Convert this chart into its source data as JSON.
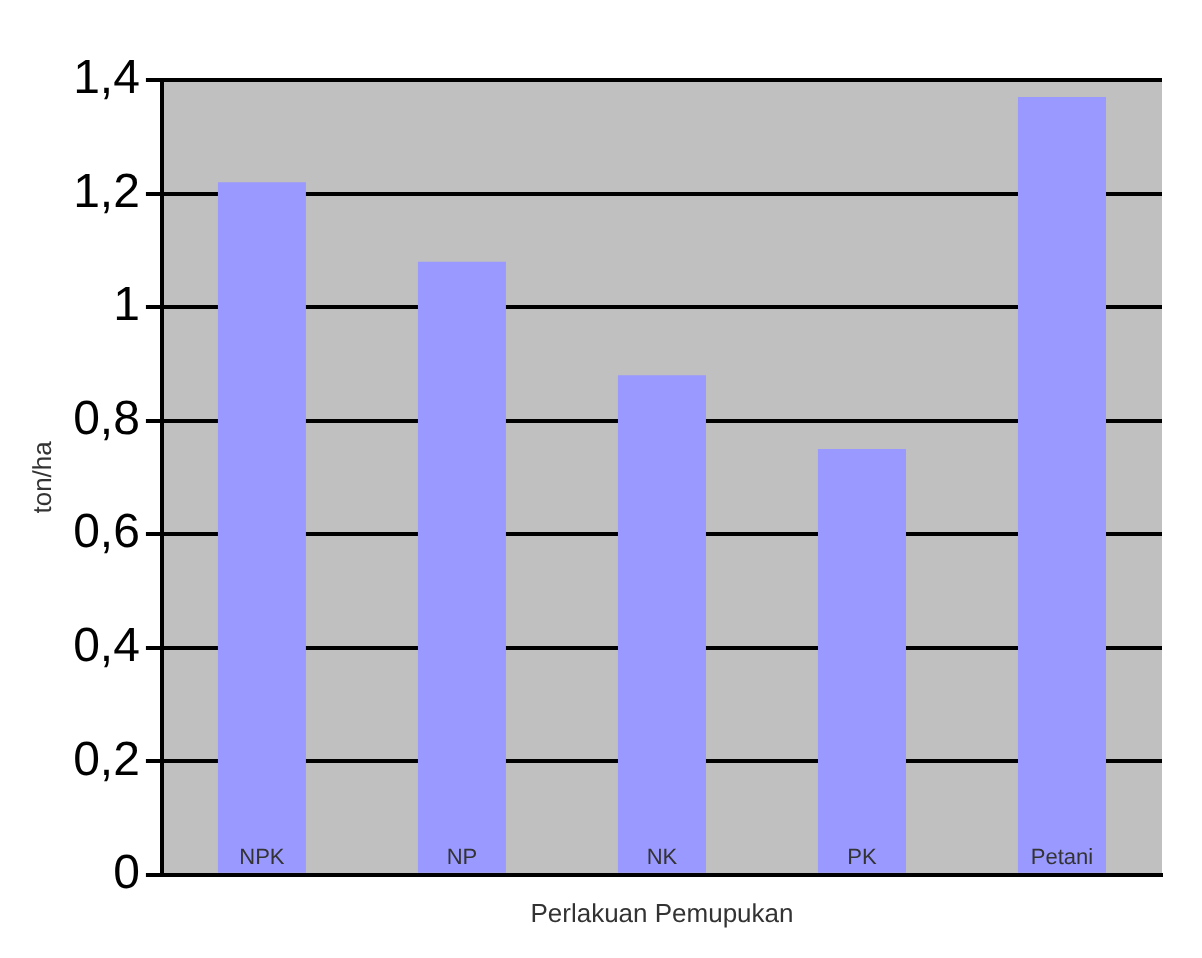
{
  "chart_data": {
    "type": "bar",
    "xlabel": "Perlakuan Pemupukan",
    "ylabel": "ton/ha",
    "categories": [
      "NPK",
      "NP",
      "NK",
      "PK",
      "Petani"
    ],
    "values": [
      1.22,
      1.08,
      0.88,
      0.75,
      1.37
    ],
    "color": "#9999ff",
    "ylim": [
      0,
      1.4
    ],
    "yticks": [
      {
        "value": 0,
        "label": "0"
      },
      {
        "value": 0.2,
        "label": "0,2"
      },
      {
        "value": 0.4,
        "label": "0,4"
      },
      {
        "value": 0.6,
        "label": "0,6"
      },
      {
        "value": 0.8,
        "label": "0,8"
      },
      {
        "value": 1,
        "label": "1"
      },
      {
        "value": 1.2,
        "label": "1,2"
      },
      {
        "value": 1.4,
        "label": "1,4"
      }
    ],
    "grid": "y",
    "legend": false
  }
}
